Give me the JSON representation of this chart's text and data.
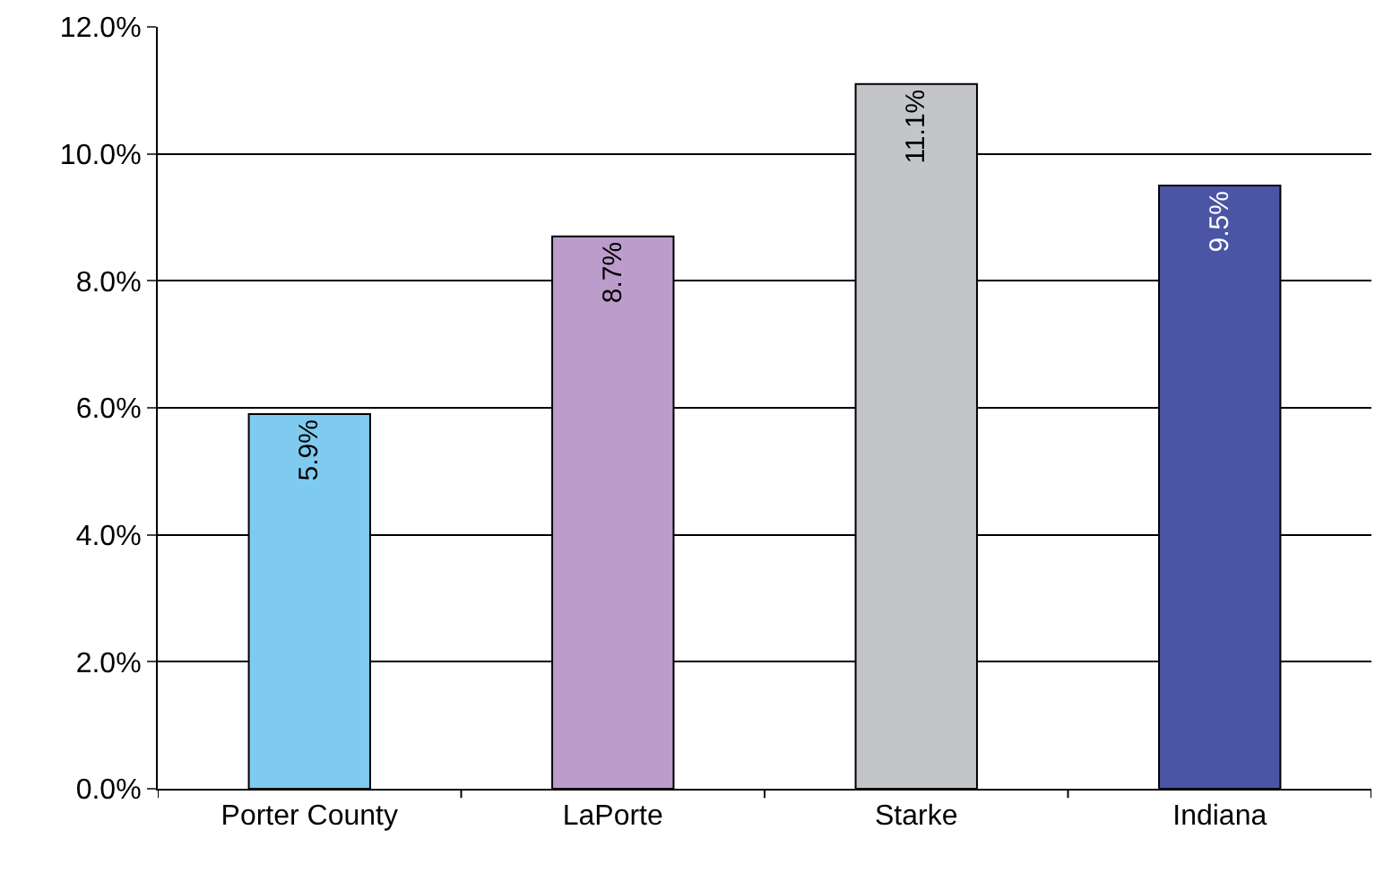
{
  "chart_data": {
    "type": "bar",
    "categories": [
      "Porter County",
      "LaPorte",
      "Starke",
      "Indiana"
    ],
    "values": [
      5.9,
      8.7,
      11.1,
      9.5
    ],
    "colors": [
      "#7fcbf0",
      "#bb9ccb",
      "#c3c5c8",
      "#4a55a6"
    ],
    "value_labels": [
      "5.9%",
      "8.7%",
      "11.1%",
      "9.5%"
    ],
    "ylim": [
      0,
      12
    ],
    "yticks": [
      {
        "value": 0,
        "label": "0.0%"
      },
      {
        "value": 2,
        "label": "2.0%"
      },
      {
        "value": 4,
        "label": "4.0%"
      },
      {
        "value": 6,
        "label": "6.0%"
      },
      {
        "value": 8,
        "label": "8.0%"
      },
      {
        "value": 10,
        "label": "10.0%"
      },
      {
        "value": 12,
        "label": "12.0%"
      }
    ],
    "grid": "y"
  }
}
